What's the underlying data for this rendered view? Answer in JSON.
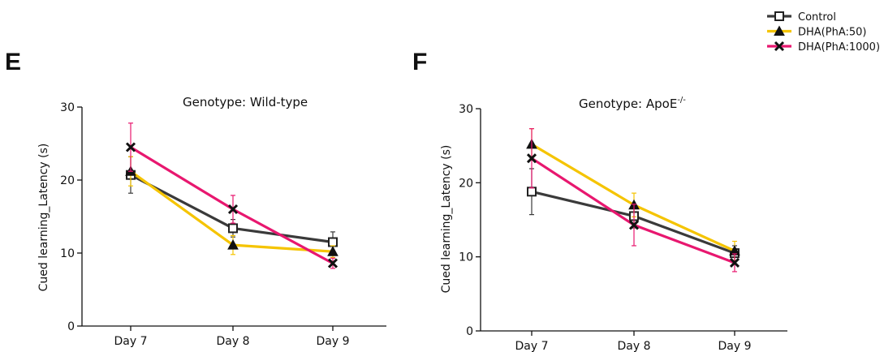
{
  "panels": {
    "E": {
      "letter": "E",
      "title": "Genotype: Wild-type"
    },
    "F": {
      "letter": "F",
      "title_main": "Genotype: ApoE",
      "title_sup": "-/-"
    }
  },
  "legend": [
    {
      "label": "Control",
      "color": "#3a3a3a",
      "marker": "square"
    },
    {
      "label": "DHA(PhA:50)",
      "color": "#f5c400",
      "marker": "triangle"
    },
    {
      "label": "DHA(PhA:1000)",
      "color": "#e8176f",
      "marker": "x"
    }
  ],
  "chart_data": [
    {
      "type": "line",
      "panel": "E",
      "title": "Genotype: Wild-type",
      "xlabel": "",
      "ylabel": "Cued learning_Latency (s)",
      "categories": [
        "Day 7",
        "Day 8",
        "Day 9"
      ],
      "ylim": [
        0,
        30
      ],
      "yticks": [
        0,
        10,
        20,
        30
      ],
      "grid": false,
      "series": [
        {
          "name": "Control",
          "values": [
            20.7,
            13.4,
            11.5
          ],
          "errors": [
            2.5,
            1.2,
            1.4
          ]
        },
        {
          "name": "DHA(PhA:50)",
          "values": [
            21.2,
            11.1,
            10.2
          ],
          "errors": [
            2.0,
            1.3,
            0.8
          ]
        },
        {
          "name": "DHA(PhA:1000)",
          "values": [
            24.5,
            16.0,
            8.6
          ],
          "errors": [
            3.3,
            1.9,
            0.7
          ]
        }
      ]
    },
    {
      "type": "line",
      "panel": "F",
      "title": "Genotype: ApoE-/-",
      "xlabel": "",
      "ylabel": "Cued learning_Latency (s)",
      "categories": [
        "Day 7",
        "Day 8",
        "Day 9"
      ],
      "ylim": [
        0,
        30
      ],
      "yticks": [
        0,
        10,
        20,
        30
      ],
      "grid": false,
      "series": [
        {
          "name": "Control",
          "values": [
            18.8,
            15.5,
            10.5
          ],
          "errors": [
            3.1,
            1.6,
            1.0
          ]
        },
        {
          "name": "DHA(PhA:50)",
          "values": [
            25.2,
            17.0,
            10.8
          ],
          "errors": [
            2.1,
            1.6,
            1.3
          ]
        },
        {
          "name": "DHA(PhA:1000)",
          "values": [
            23.3,
            14.3,
            9.2
          ],
          "errors": [
            4.0,
            2.8,
            1.2
          ]
        }
      ]
    }
  ]
}
